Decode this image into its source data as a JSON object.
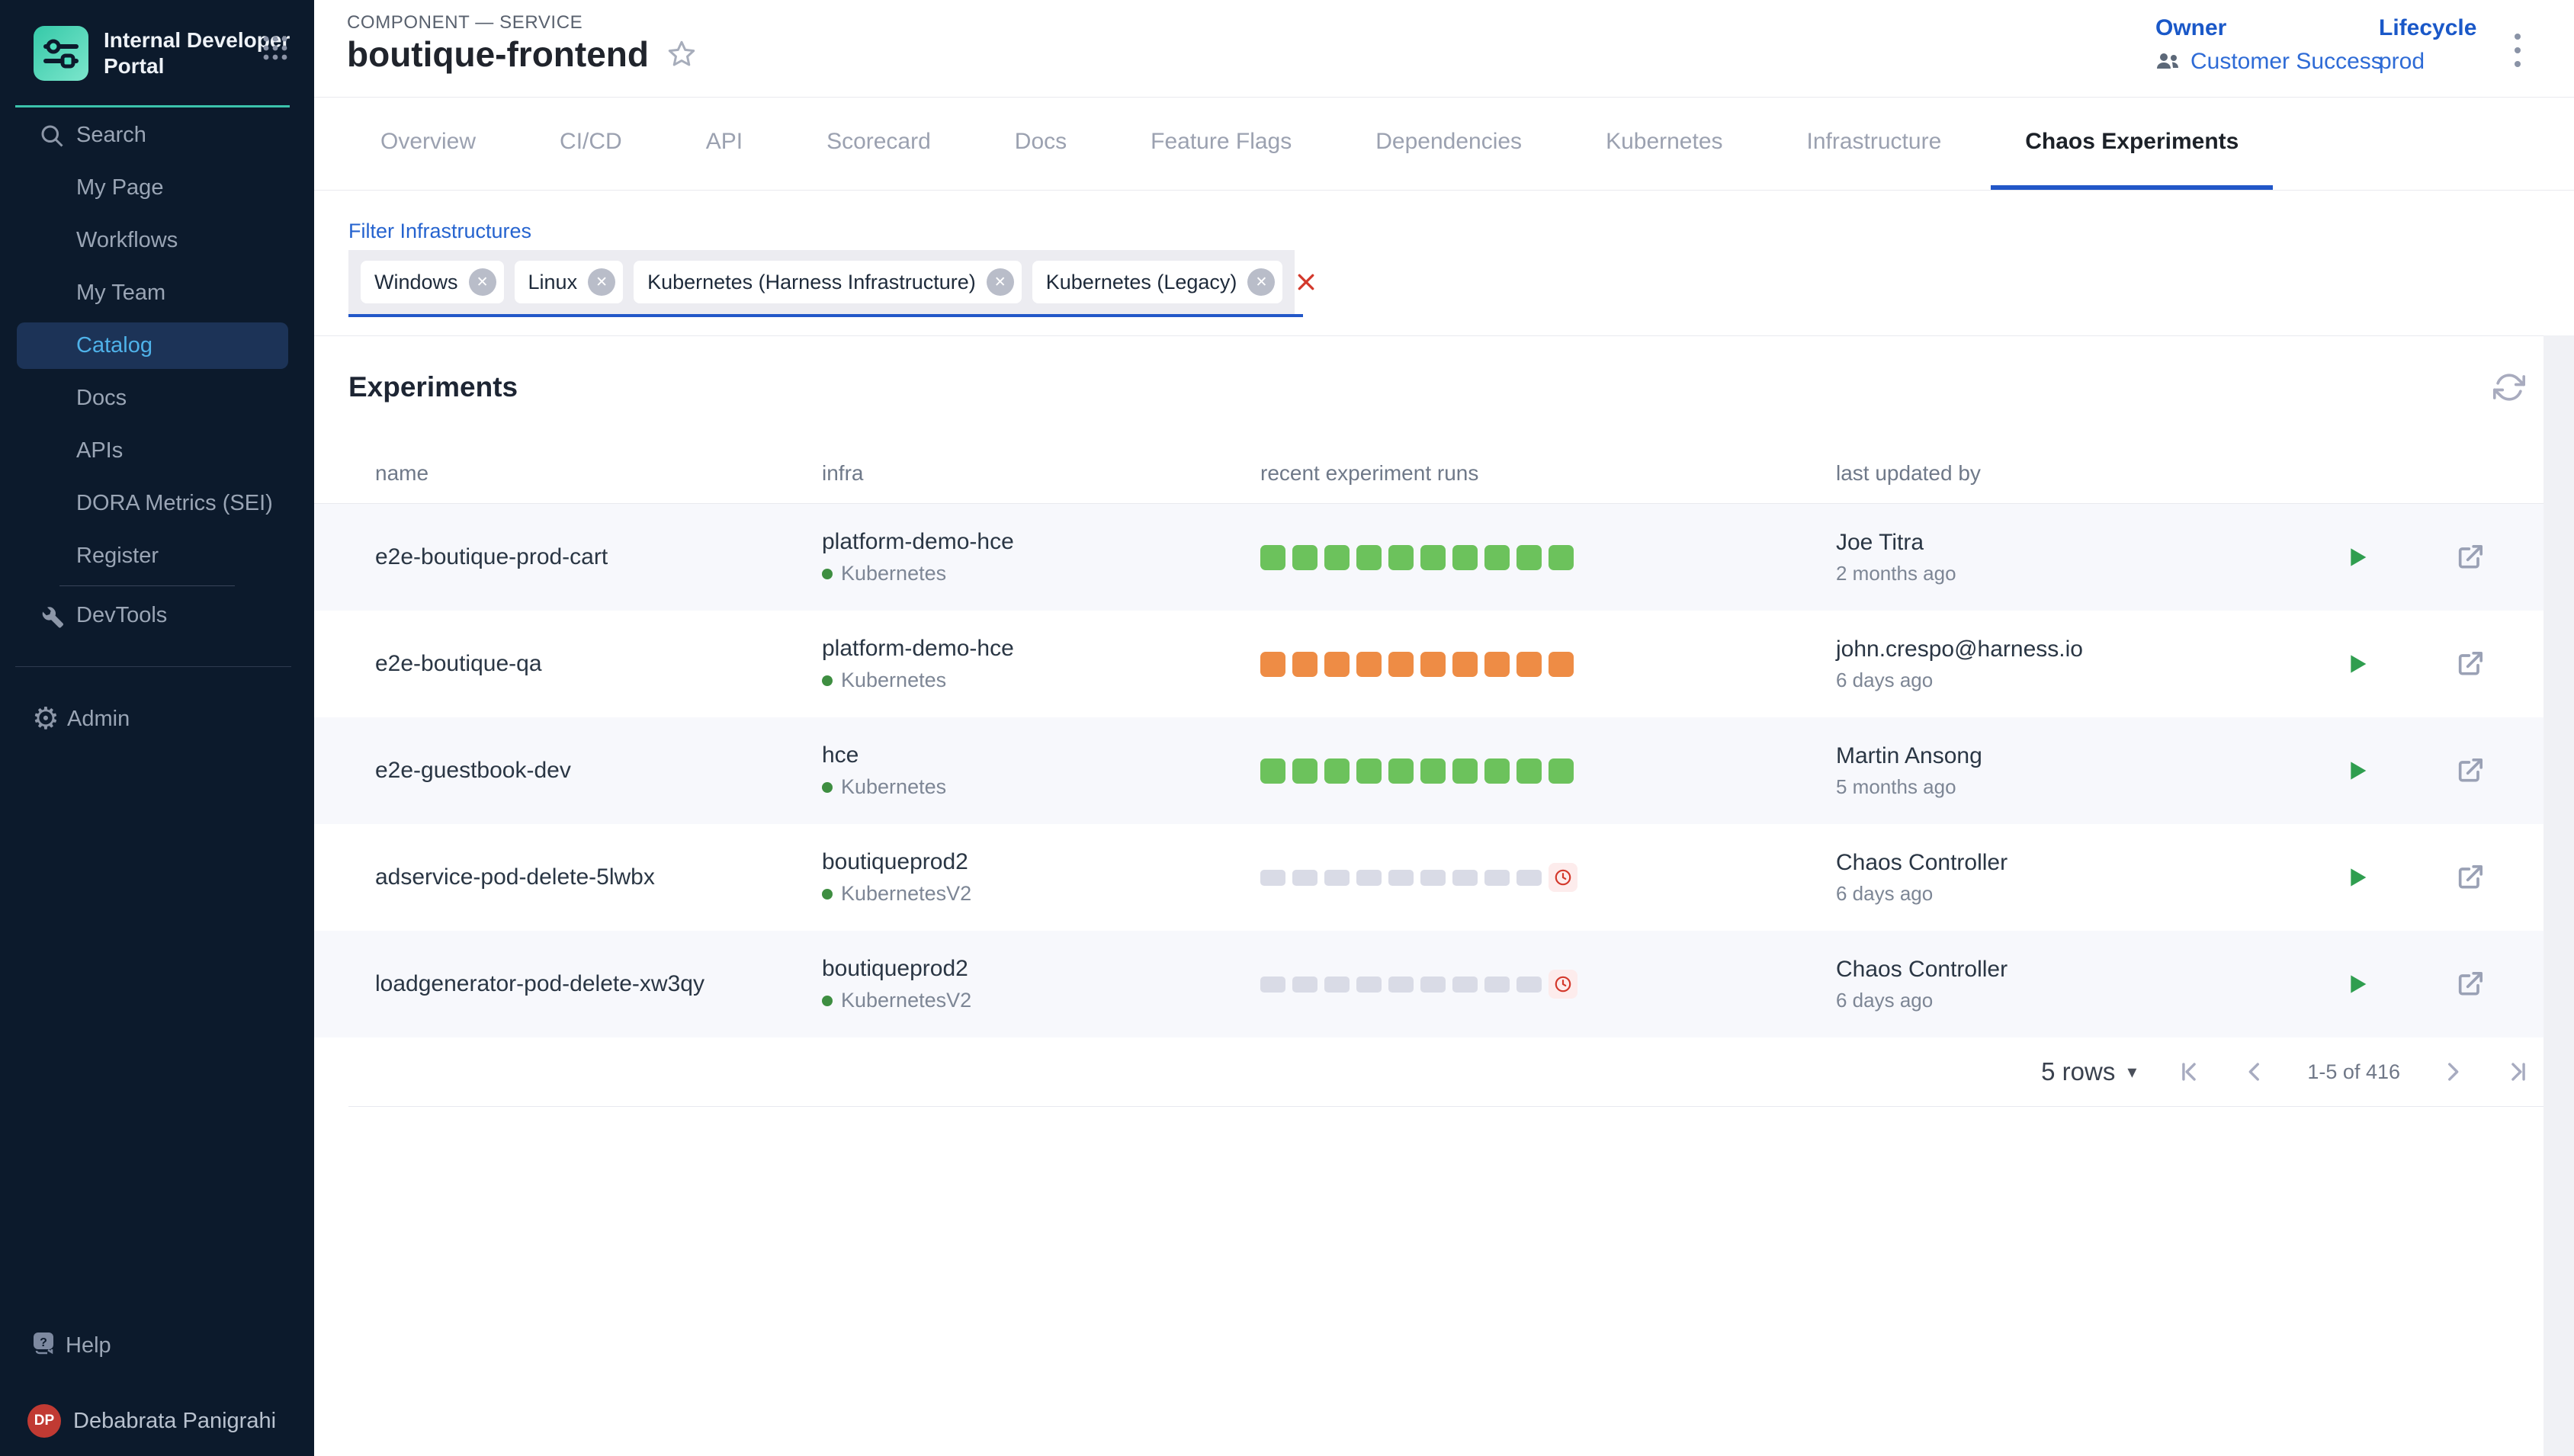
{
  "sidebar": {
    "logo": {
      "title_line1": "Internal Developer",
      "title_line2": "Portal"
    },
    "active_index": 4,
    "items": [
      {
        "label": "Search"
      },
      {
        "label": "My Page"
      },
      {
        "label": "Workflows"
      },
      {
        "label": "My Team"
      },
      {
        "label": "Catalog"
      },
      {
        "label": "Docs"
      },
      {
        "label": "APIs"
      },
      {
        "label": "DORA Metrics (SEI)"
      },
      {
        "label": "Register"
      }
    ],
    "devtools": {
      "label": "DevTools"
    },
    "admin": {
      "label": "Admin"
    },
    "help": {
      "label": "Help"
    },
    "user": {
      "initials": "DP",
      "name": "Debabrata Panigrahi"
    }
  },
  "header": {
    "breadcrumb": "COMPONENT — SERVICE",
    "title": "boutique-frontend",
    "owner": {
      "label": "Owner",
      "value": "Customer Success"
    },
    "lifecycle": {
      "label": "Lifecycle",
      "value": "prod"
    }
  },
  "tabs": {
    "active_index": 9,
    "items": [
      {
        "label": "Overview"
      },
      {
        "label": "CI/CD"
      },
      {
        "label": "API"
      },
      {
        "label": "Scorecard"
      },
      {
        "label": "Docs"
      },
      {
        "label": "Feature Flags"
      },
      {
        "label": "Dependencies"
      },
      {
        "label": "Kubernetes"
      },
      {
        "label": "Infrastructure"
      },
      {
        "label": "Chaos Experiments"
      }
    ]
  },
  "filter": {
    "label": "Filter Infrastructures",
    "chips": [
      {
        "label": "Windows"
      },
      {
        "label": "Linux"
      },
      {
        "label": "Kubernetes (Harness Infrastructure)"
      },
      {
        "label": "Kubernetes (Legacy)"
      }
    ]
  },
  "experiments": {
    "title": "Experiments",
    "columns": {
      "name": "name",
      "infra": "infra",
      "runs": "recent experiment runs",
      "updated": "last updated by"
    },
    "rows": [
      {
        "name": "e2e-boutique-prod-cart",
        "infra": "platform-demo-hce",
        "infra_type": "Kubernetes",
        "runs": {
          "style": "green",
          "count": 10,
          "overdue_clock": false
        },
        "updated_by": "Joe Titra",
        "updated_at": "2 months ago"
      },
      {
        "name": "e2e-boutique-qa",
        "infra": "platform-demo-hce",
        "infra_type": "Kubernetes",
        "runs": {
          "style": "orange",
          "count": 10,
          "overdue_clock": false
        },
        "updated_by": "john.crespo@harness.io",
        "updated_at": "6 days ago"
      },
      {
        "name": "e2e-guestbook-dev",
        "infra": "hce",
        "infra_type": "Kubernetes",
        "runs": {
          "style": "green",
          "count": 10,
          "overdue_clock": false
        },
        "updated_by": "Martin Ansong",
        "updated_at": "5 months ago"
      },
      {
        "name": "adservice-pod-delete-5lwbx",
        "infra": "boutiqueprod2",
        "infra_type": "KubernetesV2",
        "runs": {
          "style": "gray",
          "count": 9,
          "overdue_clock": true
        },
        "updated_by": "Chaos Controller",
        "updated_at": "6 days ago"
      },
      {
        "name": "loadgenerator-pod-delete-xw3qy",
        "infra": "boutiqueprod2",
        "infra_type": "KubernetesV2",
        "runs": {
          "style": "gray",
          "count": 9,
          "overdue_clock": true
        },
        "updated_by": "Chaos Controller",
        "updated_at": "6 days ago"
      }
    ]
  },
  "pagination": {
    "rows_per_page": "5 rows",
    "range": "1-5 of 416"
  },
  "colors": {
    "accent_blue": "#2257c8",
    "link_blue": "#2e6bd6",
    "run_green": "#6cc25c",
    "run_orange": "#ee8c45",
    "run_gray": "#d9dbe6",
    "alert_red": "#d3382b",
    "sidebar_bg": "#0c1a2c",
    "sidebar_active_text": "#4fb2e9",
    "teal": "#3cc3ac"
  }
}
